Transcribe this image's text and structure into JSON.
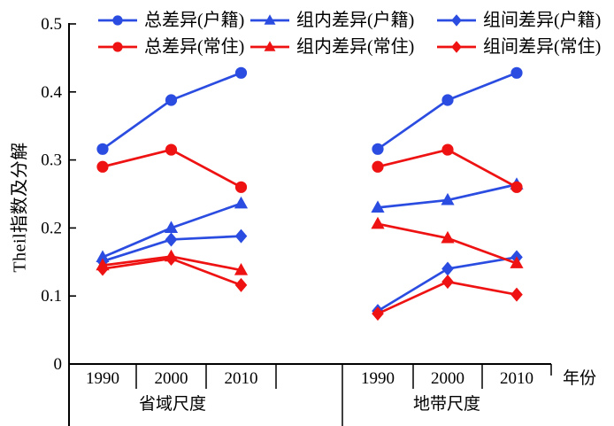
{
  "figure": {
    "background": "#ffffff",
    "axis_color": "#000000",
    "blue": "#2b4ce0",
    "red": "#ee1212"
  },
  "chart_data": {
    "type": "line",
    "title": "",
    "ylabel": "Theil指数及分解",
    "xlabel": "年份",
    "ylim": [
      0,
      0.5
    ],
    "yticks": [
      0,
      0.1,
      0.2,
      0.3,
      0.4,
      0.5
    ],
    "grid": false,
    "legend_position": "top",
    "panels": [
      {
        "label": "省域尺度",
        "categories": [
          "1990",
          "2000",
          "2010"
        ]
      },
      {
        "label": "地带尺度",
        "categories": [
          "1990",
          "2000",
          "2010"
        ]
      }
    ],
    "series": [
      {
        "name": "总差异(户籍)",
        "color": "#2b4ce0",
        "marker": "circle",
        "values_by_panel": [
          [
            0.316,
            0.388,
            0.428
          ],
          [
            0.316,
            0.388,
            0.428
          ]
        ]
      },
      {
        "name": "组内差异(户籍)",
        "color": "#2b4ce0",
        "marker": "triangle",
        "values_by_panel": [
          [
            0.157,
            0.2,
            0.236
          ],
          [
            0.23,
            0.241,
            0.264
          ]
        ]
      },
      {
        "name": "组间差异(户籍)",
        "color": "#2b4ce0",
        "marker": "diamond",
        "values_by_panel": [
          [
            0.151,
            0.183,
            0.188
          ],
          [
            0.078,
            0.14,
            0.157
          ]
        ]
      },
      {
        "name": "总差异(常住)",
        "color": "#ee1212",
        "marker": "circle",
        "values_by_panel": [
          [
            0.29,
            0.315,
            0.26
          ],
          [
            0.29,
            0.315,
            0.26
          ]
        ]
      },
      {
        "name": "组内差异(常住)",
        "color": "#ee1212",
        "marker": "triangle",
        "values_by_panel": [
          [
            0.145,
            0.158,
            0.138
          ],
          [
            0.206,
            0.185,
            0.148
          ]
        ]
      },
      {
        "name": "组间差异(常住)",
        "color": "#ee1212",
        "marker": "diamond",
        "values_by_panel": [
          [
            0.14,
            0.155,
            0.116
          ],
          [
            0.074,
            0.121,
            0.102
          ]
        ]
      }
    ]
  }
}
